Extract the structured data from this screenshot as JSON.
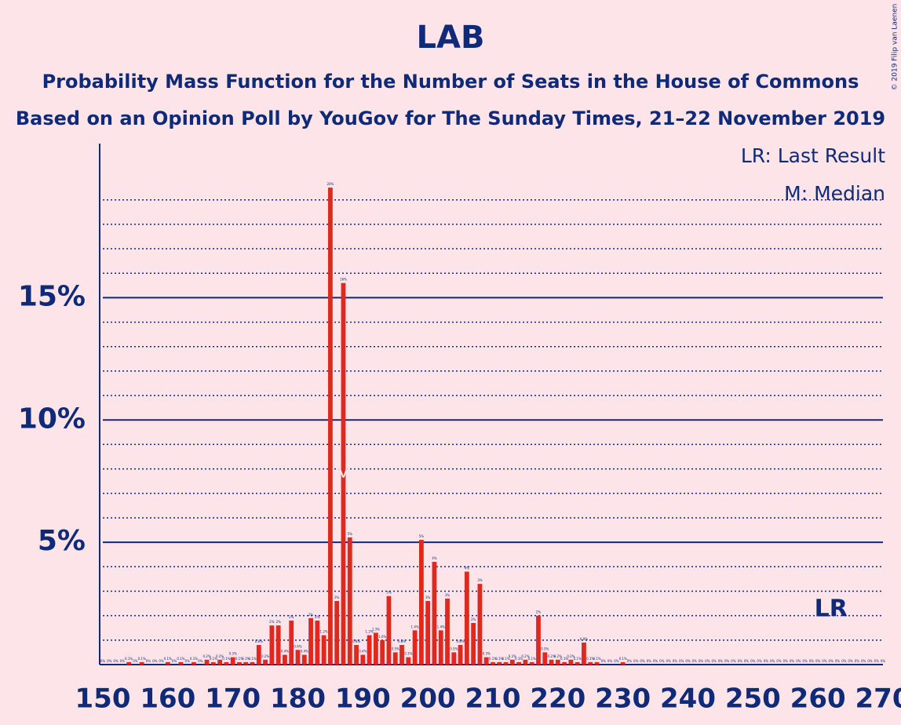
{
  "chart_data": {
    "type": "bar",
    "title": "LAB",
    "subtitle": [
      "Probability Mass Function for the Number of Seats in the House of Commons",
      "Based on an Opinion Poll by YouGov for The Sunday Times, 21–22 November 2019"
    ],
    "x": [
      150,
      151,
      152,
      153,
      154,
      155,
      156,
      157,
      158,
      159,
      160,
      161,
      162,
      163,
      164,
      165,
      166,
      167,
      168,
      169,
      170,
      171,
      172,
      173,
      174,
      175,
      176,
      177,
      178,
      179,
      180,
      181,
      182,
      183,
      184,
      185,
      186,
      187,
      188,
      189,
      190,
      191,
      192,
      193,
      194,
      195,
      196,
      197,
      198,
      199,
      200,
      201,
      202,
      203,
      204,
      205,
      206,
      207,
      208,
      209,
      210,
      211,
      212,
      213,
      214,
      215,
      216,
      217,
      218,
      219,
      220,
      221,
      222,
      223,
      224,
      225,
      226,
      227,
      228,
      229,
      230,
      231,
      232,
      233,
      234,
      235,
      236,
      237,
      238,
      239,
      240,
      241,
      242,
      243,
      244,
      245,
      246,
      247,
      248,
      249,
      250,
      251,
      252,
      253,
      254,
      255,
      256,
      257,
      258,
      259,
      260,
      261,
      262,
      263,
      264,
      265,
      266,
      267,
      268,
      269,
      270
    ],
    "values": [
      0,
      0,
      0,
      0,
      0.1,
      0,
      0.1,
      0,
      0,
      0,
      0.1,
      0,
      0.1,
      0,
      0.1,
      0,
      0.2,
      0.1,
      0.2,
      0.1,
      0.3,
      0.1,
      0.1,
      0.1,
      0.8,
      0.2,
      1.6,
      1.6,
      0.4,
      1.8,
      0.6,
      0.4,
      1.9,
      1.8,
      1.2,
      19.5,
      2.6,
      15.6,
      5.2,
      0.8,
      0.4,
      1.2,
      1.3,
      1.0,
      2.8,
      0.5,
      0.8,
      0.3,
      1.4,
      5.1,
      2.6,
      4.2,
      1.4,
      2.7,
      0.5,
      0.8,
      3.8,
      1.7,
      3.3,
      0.3,
      0.1,
      0.1,
      0.1,
      0.2,
      0.1,
      0.2,
      0.1,
      2,
      0.5,
      0.2,
      0.2,
      0.1,
      0.2,
      0.1,
      0.9,
      0.1,
      0.1,
      0,
      0,
      0,
      0.1,
      0,
      0,
      0,
      0,
      0,
      0,
      0,
      0,
      0,
      0,
      0,
      0,
      0,
      0,
      0,
      0,
      0,
      0,
      0,
      0,
      0,
      0,
      0,
      0,
      0,
      0,
      0,
      0,
      0,
      0,
      0,
      0,
      0,
      0,
      0,
      0,
      0,
      0,
      0,
      0
    ],
    "value_labels": [
      "0%",
      "0%",
      "0%",
      "0%",
      "0.1%",
      "0%",
      "0.1%",
      "0%",
      "0%",
      "0%",
      "0.1%",
      "0%",
      "0.1%",
      "0%",
      "0.1%",
      "0%",
      "0.2%",
      "0.1%",
      "0.2%",
      "0.1%",
      "0.3%",
      "0.1%",
      "0.1%",
      "0.1%",
      "0.8%",
      "0.2%",
      "2%",
      "2%",
      "0.4%",
      "2%",
      "0.6%",
      "0.4%",
      "2%",
      "2%",
      "1.2%",
      "20%",
      "3%",
      "16%",
      "5%",
      "0.8%",
      "0.4%",
      "1.2%",
      "1.3%",
      "1.0%",
      "3%",
      "0.5%",
      "0.8%",
      "0.3%",
      "1.4%",
      "5%",
      "3%",
      "4%",
      "1.4%",
      "3%",
      "0.5%",
      "0.8%",
      "4%",
      "2%",
      "3%",
      "0.3%",
      "0.1%",
      "0.1%",
      "0.1%",
      "0.2%",
      "0.1%",
      "0.2%",
      "0.1%",
      "2%",
      "0.5%",
      "0.2%",
      "0.2%",
      "0.1%",
      "0.2%",
      "0.1%",
      "0.9%",
      "0.1%",
      "0.1%",
      "0%",
      "0%",
      "0%",
      "0.1%",
      "0%",
      "0%",
      "0%",
      "0%",
      "0%",
      "0%",
      "0%",
      "0%",
      "0%",
      "0%",
      "0%",
      "0%",
      "0%",
      "0%",
      "0%",
      "0%",
      "0%",
      "0%",
      "0%",
      "0%",
      "0%",
      "0%",
      "0%",
      "0%",
      "0%",
      "0%",
      "0%",
      "0%",
      "0%",
      "0%",
      "0%",
      "0%",
      "0%",
      "0%",
      "0%",
      "0%",
      "0%",
      "0%",
      "0%",
      "0%"
    ],
    "color": "#e0281e",
    "xlim": [
      150,
      270
    ],
    "xticks": [
      150,
      160,
      170,
      180,
      190,
      200,
      210,
      220,
      230,
      240,
      250,
      260,
      270
    ],
    "ylim": [
      0,
      21.3
    ],
    "yticks": [
      {
        "value": 5,
        "label": "5%"
      },
      {
        "value": 10,
        "label": "10%"
      },
      {
        "value": 15,
        "label": "15%"
      }
    ],
    "minor_yticks": [
      1,
      2,
      3,
      4,
      6,
      7,
      8,
      9,
      11,
      12,
      13,
      14,
      16,
      17,
      18,
      19
    ],
    "last_result": {
      "x": 262,
      "label": "LR"
    },
    "median": {
      "x": 187,
      "label": "M"
    },
    "legend": [
      "LR: Last Result",
      "M: Median"
    ],
    "copyright": "© 2019 Filip van Laenen"
  }
}
